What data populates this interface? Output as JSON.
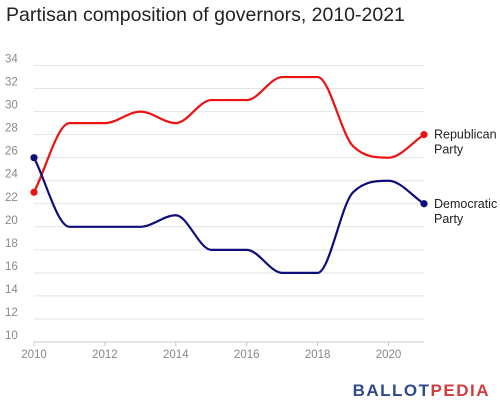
{
  "chart_data": {
    "type": "line",
    "title": "Partisan composition of governors, 2010-2021",
    "xlabel": "",
    "ylabel": "",
    "xlim": [
      2010,
      2021
    ],
    "ylim": [
      10,
      35
    ],
    "x_ticks": [
      "2010",
      "2012",
      "2014",
      "2016",
      "2018",
      "2020"
    ],
    "y_ticks": [
      "10",
      "12",
      "14",
      "16",
      "18",
      "20",
      "22",
      "24",
      "26",
      "28",
      "30",
      "32",
      "34"
    ],
    "grid": true,
    "series": [
      {
        "name": "Republican Party",
        "label_lines": [
          "Republican",
          "Party"
        ],
        "color": "#ee1111",
        "x": [
          2010,
          2011,
          2012,
          2013,
          2014,
          2015,
          2016,
          2017,
          2018,
          2019,
          2020,
          2021
        ],
        "y": [
          23,
          29,
          29,
          30,
          29,
          31,
          31,
          33,
          33,
          27,
          26,
          28
        ]
      },
      {
        "name": "Democratic Party",
        "label_lines": [
          "Democratic",
          "Party"
        ],
        "color": "#0d0d7d",
        "x": [
          2010,
          2011,
          2012,
          2013,
          2014,
          2015,
          2016,
          2017,
          2018,
          2019,
          2020,
          2021
        ],
        "y": [
          26,
          20,
          20,
          20,
          21,
          18,
          18,
          16,
          16,
          23,
          24,
          22
        ]
      }
    ]
  },
  "logo": {
    "part1": "BALLOT",
    "part2": "PEDIA",
    "colors": [
      "#2f4a8c",
      "#d13d3d"
    ]
  }
}
